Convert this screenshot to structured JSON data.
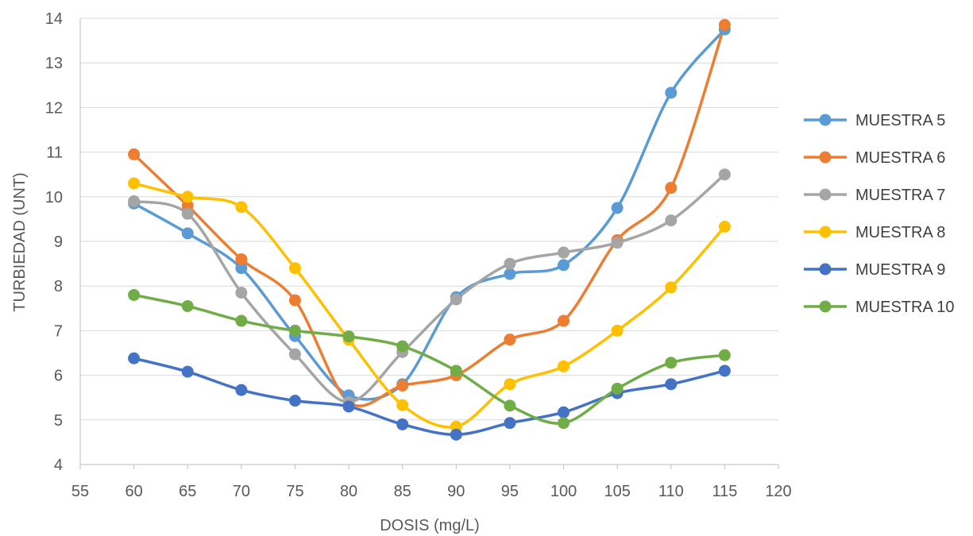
{
  "chart_data": {
    "type": "line",
    "smooth": true,
    "title": "",
    "xlabel": "DOSIS (mg/L)",
    "ylabel": "TURBIEDAD (UNT)",
    "xlim": [
      55,
      120
    ],
    "ylim": [
      4,
      14
    ],
    "xticks": [
      55,
      60,
      65,
      70,
      75,
      80,
      85,
      90,
      95,
      100,
      105,
      110,
      115,
      120
    ],
    "yticks": [
      4,
      5,
      6,
      7,
      8,
      9,
      10,
      11,
      12,
      13,
      14
    ],
    "grid": "horizontal",
    "legend_position": "right",
    "x": [
      60,
      65,
      70,
      75,
      80,
      85,
      90,
      95,
      100,
      105,
      110,
      115
    ],
    "series": [
      {
        "name": "MUESTRA 5",
        "color": "#5B9BD5",
        "values": [
          9.85,
          9.18,
          8.4,
          6.88,
          5.55,
          5.8,
          7.75,
          8.27,
          8.47,
          9.75,
          12.33,
          13.75
        ]
      },
      {
        "name": "MUESTRA 6",
        "color": "#ED7D31",
        "values": [
          10.95,
          9.8,
          8.6,
          7.68,
          5.4,
          5.77,
          6.0,
          6.8,
          7.22,
          9.03,
          10.2,
          13.85
        ]
      },
      {
        "name": "MUESTRA 7",
        "color": "#A5A5A5",
        "values": [
          9.9,
          9.62,
          7.85,
          6.47,
          5.4,
          6.52,
          7.7,
          8.5,
          8.75,
          8.97,
          9.47,
          10.5
        ]
      },
      {
        "name": "MUESTRA 8",
        "color": "#FFC000",
        "values": [
          10.3,
          10.0,
          9.77,
          8.4,
          6.8,
          5.33,
          4.85,
          5.8,
          6.2,
          7.0,
          7.97,
          9.33
        ]
      },
      {
        "name": "MUESTRA 9",
        "color": "#4472C4",
        "values": [
          6.38,
          6.08,
          5.67,
          5.43,
          5.3,
          4.9,
          4.67,
          4.93,
          5.17,
          5.6,
          5.8,
          6.1
        ]
      },
      {
        "name": "MUESTRA 10",
        "color": "#70AD47",
        "values": [
          7.8,
          7.55,
          7.22,
          7.0,
          6.87,
          6.65,
          6.1,
          5.32,
          4.93,
          5.7,
          6.28,
          6.45
        ]
      }
    ]
  }
}
